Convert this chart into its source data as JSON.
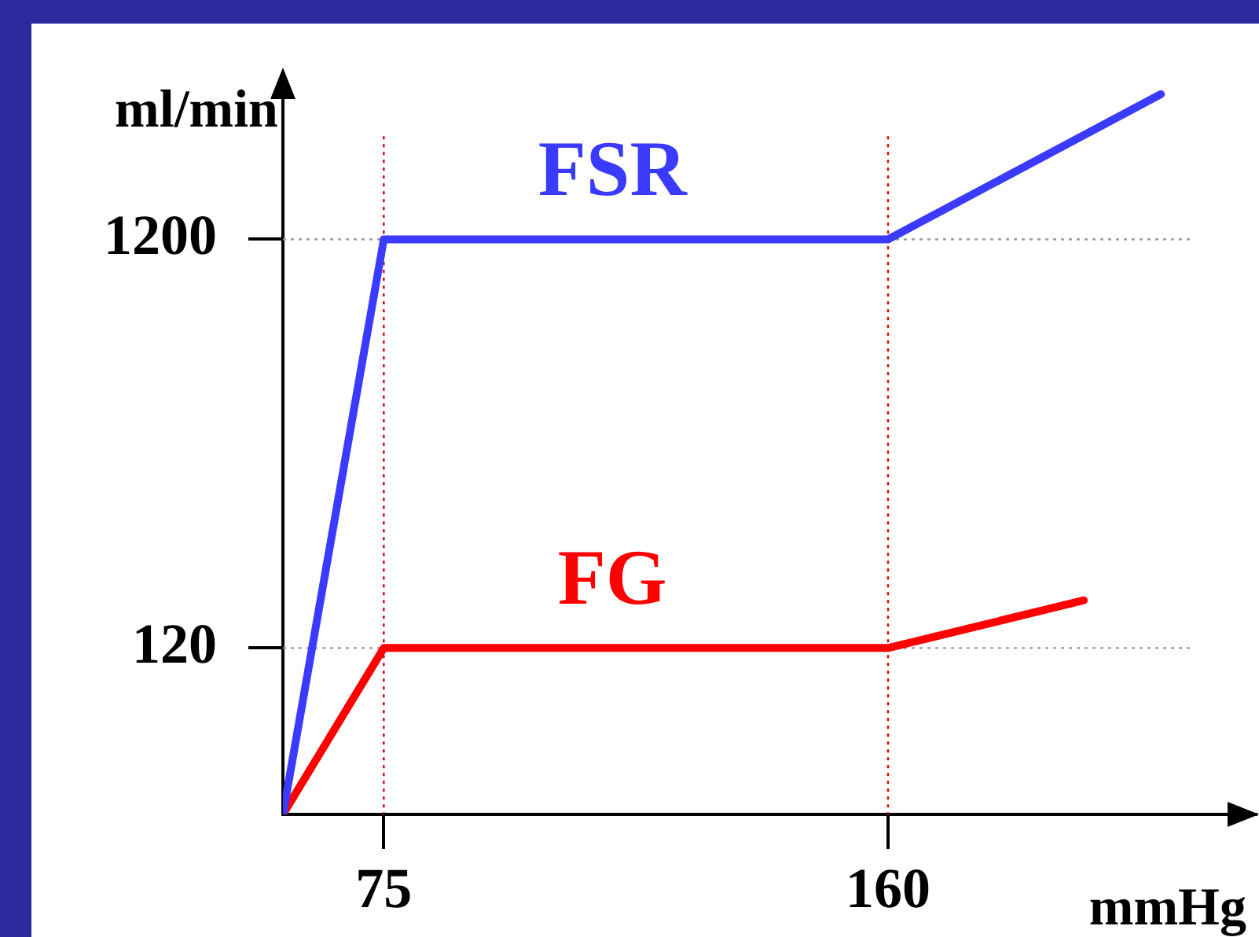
{
  "chart_data": {
    "type": "line",
    "xlabel": "mmHg",
    "ylabel": "ml/min",
    "series": [
      {
        "name": "FSR",
        "color": "#3b3bff",
        "x": [
          58,
          75,
          160,
          206
        ],
        "values": [
          47,
          1200,
          1200,
          2720
        ]
      },
      {
        "name": "FG",
        "color": "#ff0000",
        "x": [
          58,
          75,
          160,
          193
        ],
        "values": [
          47,
          120,
          120,
          157
        ]
      }
    ],
    "xlim": [
      58,
      222
    ],
    "xticks": [
      75,
      160
    ],
    "ylim": [
      47,
      2800
    ],
    "yticks": [
      120,
      1200
    ],
    "log": "y",
    "grid": false,
    "legend": false,
    "marker": "none",
    "line_style": "solid",
    "ref_lines": [
      {
        "axis": "y",
        "value": 1200,
        "color": "#999999",
        "line_style": "dotted"
      },
      {
        "axis": "y",
        "value": 120,
        "color": "#999999",
        "line_style": "dotted"
      },
      {
        "axis": "x",
        "value": 75,
        "color": "#cc0000",
        "line_style": "dotted"
      },
      {
        "axis": "x",
        "value": 160,
        "color": "#cc0000",
        "line_style": "dotted"
      }
    ]
  }
}
